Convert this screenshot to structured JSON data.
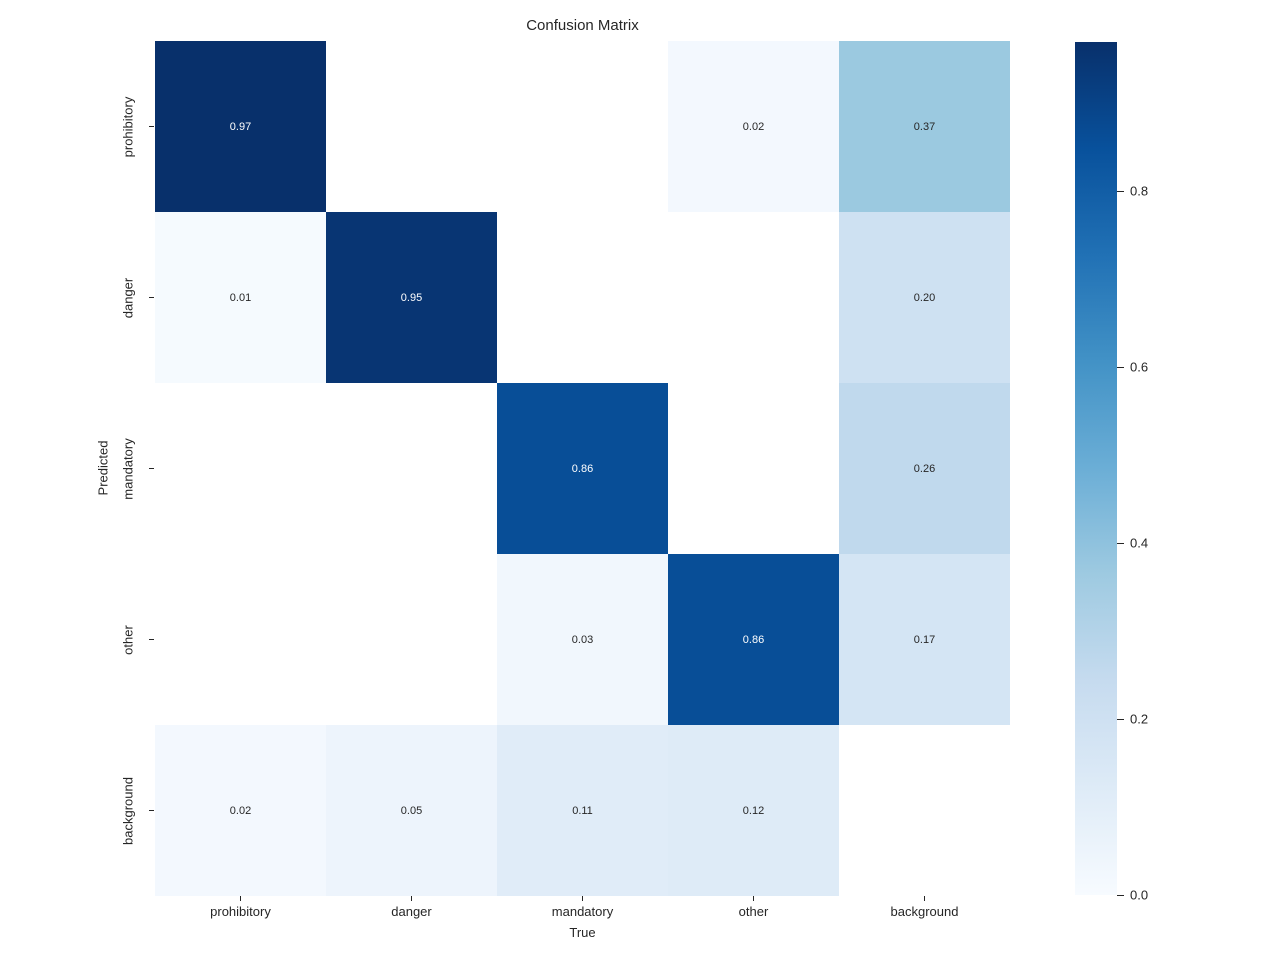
{
  "title": "Confusion Matrix",
  "axes": {
    "xlabel": "True",
    "ylabel": "Predicted"
  },
  "chart_data": {
    "type": "heatmap",
    "title": "Confusion Matrix",
    "xlabel": "True",
    "ylabel": "Predicted",
    "x_categories": [
      "prohibitory",
      "danger",
      "mandatory",
      "other",
      "background"
    ],
    "y_categories": [
      "prohibitory",
      "danger",
      "mandatory",
      "other",
      "background"
    ],
    "values": [
      [
        0.97,
        null,
        null,
        0.02,
        0.37
      ],
      [
        0.01,
        0.95,
        null,
        null,
        0.2
      ],
      [
        null,
        null,
        0.86,
        null,
        0.26
      ],
      [
        null,
        null,
        0.03,
        0.86,
        0.17
      ],
      [
        0.02,
        0.05,
        0.11,
        0.12,
        null
      ]
    ],
    "annotations": [
      [
        "0.97",
        "",
        "",
        "0.02",
        "0.37"
      ],
      [
        "0.01",
        "0.95",
        "",
        "",
        "0.20"
      ],
      [
        "",
        "",
        "0.86",
        "",
        "0.26"
      ],
      [
        "",
        "",
        "0.03",
        "0.86",
        "0.17"
      ],
      [
        "0.02",
        "0.05",
        "0.11",
        "0.12",
        ""
      ]
    ],
    "vmin": 0.0,
    "vmax": 0.97,
    "colormap": "Blues",
    "colormap_stops": [
      "#f7fbff",
      "#deebf7",
      "#c6dbef",
      "#9ecae1",
      "#6baed6",
      "#4292c6",
      "#2171b5",
      "#08519c",
      "#08306b"
    ],
    "empty_cell_color": "#ffffff",
    "annotation_color_dark_cells": "#ffffff",
    "annotation_color_light_cells": "#262626",
    "colorbar": {
      "position": "right",
      "ticks": [
        0.0,
        0.2,
        0.4,
        0.6,
        0.8
      ],
      "tick_labels": [
        "0.0",
        "0.2",
        "0.4",
        "0.6",
        "0.8"
      ]
    },
    "grid": false,
    "legend_position": "right-colorbar",
    "background_color": "#ffffff",
    "text_color": "#262626"
  }
}
